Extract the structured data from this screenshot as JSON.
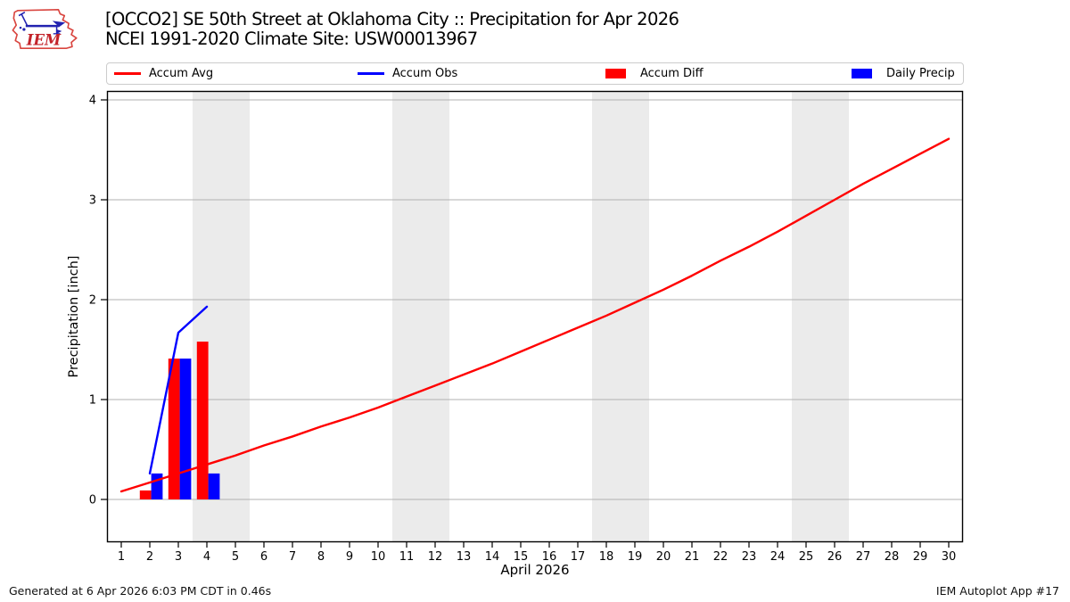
{
  "header": {
    "title_line1": "[OCCO2] SE 50th Street at Oklahoma City :: Precipitation for Apr 2026",
    "title_line2": "NCEI 1991-2020 Climate Site: USW00013967",
    "logo_text": "IEM"
  },
  "footer": {
    "generated": "Generated at 6 Apr 2026 6:03 PM CDT in 0.46s",
    "app": "IEM Autoplot App #17"
  },
  "colors": {
    "red": "#ff0000",
    "blue": "#0000ff",
    "weekend_band": "#ebebeb",
    "gridline": "#b0b0b0",
    "spine": "#000000",
    "logo_red": "#d9453f",
    "logo_blue": "#2222b0"
  },
  "chart_data": {
    "type": "mixed",
    "subtype": "line+bar",
    "title": "[OCCO2] SE 50th Street at Oklahoma City :: Precipitation for Apr 2026",
    "subtitle": "NCEI 1991-2020 Climate Site: USW00013967",
    "xlabel": "April 2026",
    "ylabel": "Precipitation [inch]",
    "xlim": [
      0.5,
      30.5
    ],
    "ylim": [
      -0.43,
      4.09
    ],
    "xticks": [
      1,
      2,
      3,
      4,
      5,
      6,
      7,
      8,
      9,
      10,
      11,
      12,
      13,
      14,
      15,
      16,
      17,
      18,
      19,
      20,
      21,
      22,
      23,
      24,
      25,
      26,
      27,
      28,
      29,
      30
    ],
    "yticks": [
      0,
      1,
      2,
      3,
      4
    ],
    "grid": "horizontal",
    "legend_position": "top",
    "weekend_shading_days": [
      [
        3.5,
        5.5
      ],
      [
        10.5,
        12.5
      ],
      [
        17.5,
        19.5
      ],
      [
        24.5,
        26.5
      ]
    ],
    "series": [
      {
        "name": "Accum Avg",
        "type": "line",
        "color": "#ff0000",
        "x": [
          1,
          2,
          3,
          4,
          5,
          6,
          7,
          8,
          9,
          10,
          11,
          12,
          13,
          14,
          15,
          16,
          17,
          18,
          19,
          20,
          21,
          22,
          23,
          24,
          25,
          26,
          27,
          28,
          29,
          30
        ],
        "values": [
          0.08,
          0.17,
          0.26,
          0.35,
          0.44,
          0.54,
          0.63,
          0.73,
          0.82,
          0.92,
          1.03,
          1.14,
          1.25,
          1.36,
          1.48,
          1.6,
          1.72,
          1.84,
          1.97,
          2.1,
          2.24,
          2.39,
          2.53,
          2.68,
          2.84,
          3.0,
          3.16,
          3.31,
          3.46,
          3.61
        ]
      },
      {
        "name": "Accum Obs",
        "type": "line",
        "color": "#0000ff",
        "x": [
          2,
          3,
          4
        ],
        "values": [
          0.26,
          1.67,
          1.93
        ]
      },
      {
        "name": "Accum Diff",
        "type": "bar",
        "color": "#ff0000",
        "x": [
          2,
          3,
          4
        ],
        "values": [
          0.09,
          1.41,
          1.58
        ]
      },
      {
        "name": "Daily Precip",
        "type": "bar",
        "color": "#0000ff",
        "x": [
          2,
          3,
          4
        ],
        "values": [
          0.26,
          1.41,
          0.26
        ]
      }
    ]
  }
}
